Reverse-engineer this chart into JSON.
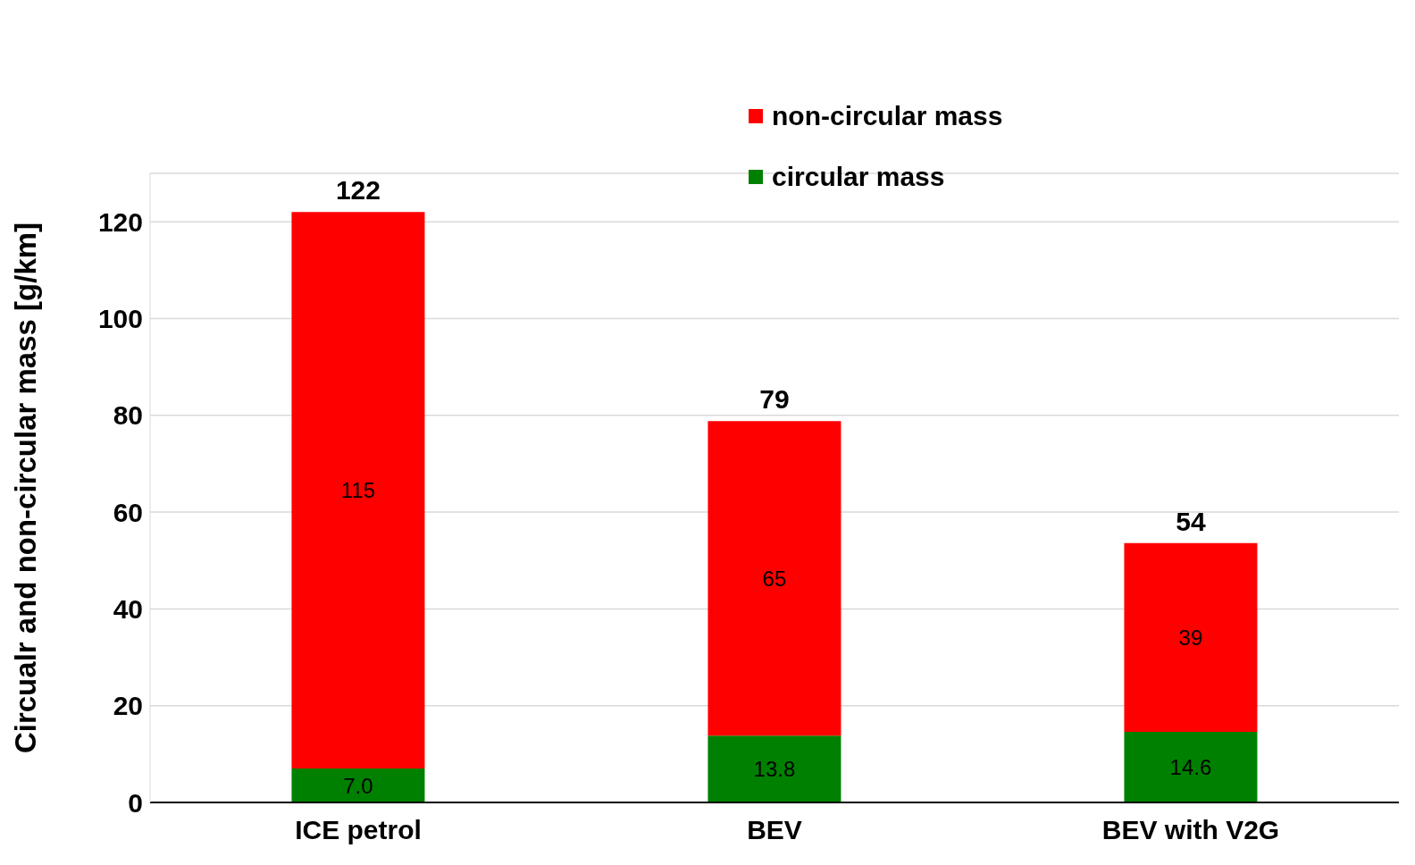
{
  "chart_data": {
    "type": "bar",
    "stacked": true,
    "ylabel": "Circualr and non-circular mass [g/km]",
    "categories": [
      "ICE petrol",
      "BEV",
      "BEV with V2G"
    ],
    "series": [
      {
        "name": "circular mass",
        "color": "#008000",
        "values": [
          7.0,
          13.8,
          14.6
        ],
        "value_labels": [
          "7.0",
          "13.8",
          "14.6"
        ]
      },
      {
        "name": "non-circular mass",
        "color": "#ff0000",
        "values": [
          115,
          65,
          39
        ],
        "value_labels": [
          "115",
          "65",
          "39"
        ]
      }
    ],
    "totals": [
      "122",
      "79",
      "54"
    ],
    "ylim": [
      0,
      130
    ],
    "yticks": [
      0,
      20,
      40,
      60,
      80,
      100,
      120
    ],
    "grid": "y",
    "legend": "top right"
  }
}
